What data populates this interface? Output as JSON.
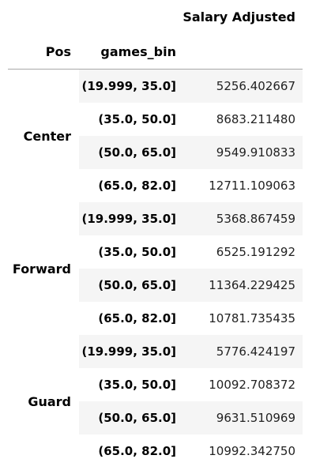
{
  "table": {
    "headers": {
      "value_column": "Salary Adjusted",
      "index_level_0": "Pos",
      "index_level_1": "games_bin"
    },
    "groups": [
      {
        "pos": "Center",
        "rows": [
          {
            "bin": "(19.999, 35.0]",
            "value": "5256.402667"
          },
          {
            "bin": "(35.0, 50.0]",
            "value": "8683.211480"
          },
          {
            "bin": "(50.0, 65.0]",
            "value": "9549.910833"
          },
          {
            "bin": "(65.0, 82.0]",
            "value": "12711.109063"
          }
        ]
      },
      {
        "pos": "Forward",
        "rows": [
          {
            "bin": "(19.999, 35.0]",
            "value": "5368.867459"
          },
          {
            "bin": "(35.0, 50.0]",
            "value": "6525.191292"
          },
          {
            "bin": "(50.0, 65.0]",
            "value": "11364.229425"
          },
          {
            "bin": "(65.0, 82.0]",
            "value": "10781.735435"
          }
        ]
      },
      {
        "pos": "Guard",
        "rows": [
          {
            "bin": "(19.999, 35.0]",
            "value": "5776.424197"
          },
          {
            "bin": "(35.0, 50.0]",
            "value": "10092.708372"
          },
          {
            "bin": "(50.0, 65.0]",
            "value": "9631.510969"
          },
          {
            "bin": "(65.0, 82.0]",
            "value": "10992.342750"
          }
        ]
      }
    ]
  }
}
